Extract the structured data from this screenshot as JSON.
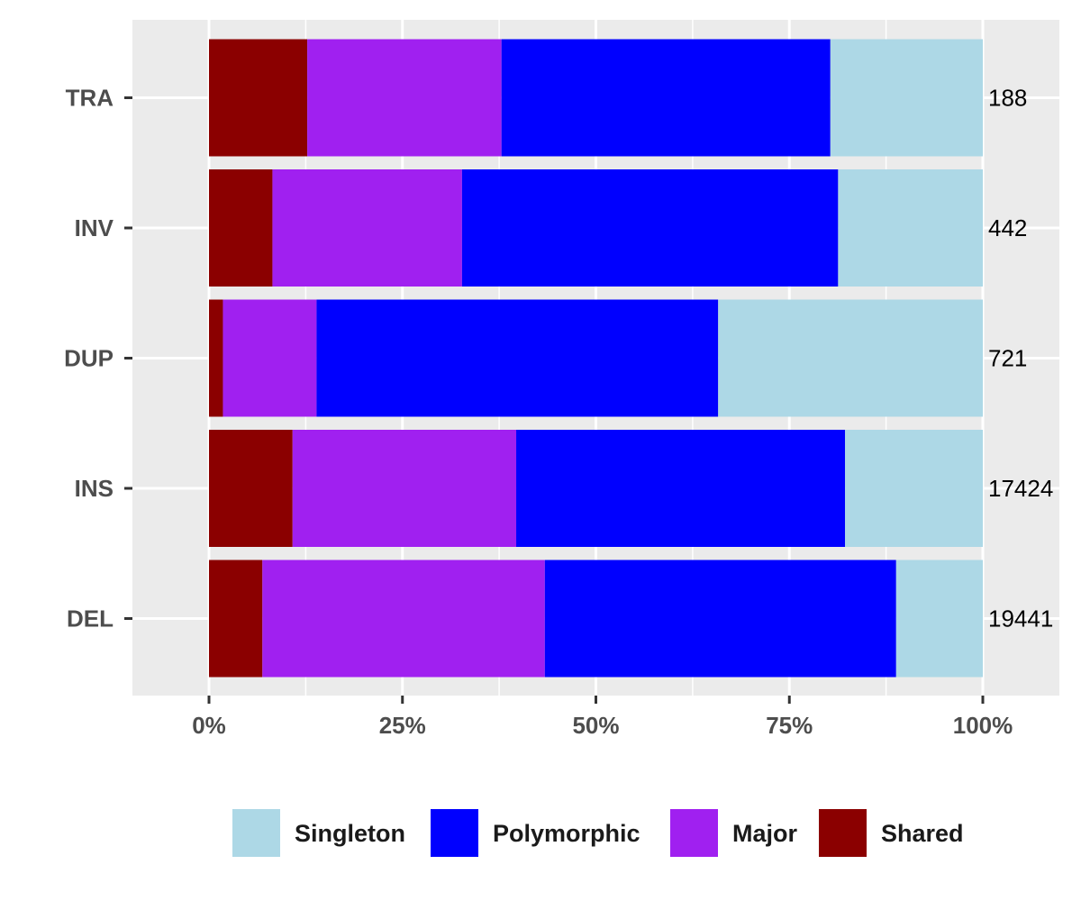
{
  "chart_data": {
    "type": "bar",
    "orientation": "horizontal",
    "stacked": true,
    "normalized": true,
    "title": "",
    "xlabel": "",
    "ylabel": "",
    "xlim": [
      -0.2,
      2.2
    ],
    "x_ticks": [
      0,
      0.25,
      0.5,
      0.75,
      1.0
    ],
    "x_tick_labels": [
      "0%",
      "25%",
      "50%",
      "75%",
      "100%"
    ],
    "categories": [
      "TRA",
      "INV",
      "DUP",
      "INS",
      "DEL"
    ],
    "counts": [
      "188",
      "442",
      "721",
      "17424",
      "19441"
    ],
    "series": [
      {
        "name": "Shared",
        "color": "#8B0000",
        "values": [
          0.127,
          0.082,
          0.018,
          0.108,
          0.069
        ]
      },
      {
        "name": "Major",
        "color": "#A020F0",
        "values": [
          0.251,
          0.245,
          0.121,
          0.289,
          0.365
        ]
      },
      {
        "name": "Polymorphic",
        "color": "#0000FF",
        "values": [
          0.425,
          0.486,
          0.519,
          0.425,
          0.454
        ]
      },
      {
        "name": "Singleton",
        "color": "#ADD8E6",
        "values": [
          0.197,
          0.187,
          0.342,
          0.178,
          0.112
        ]
      }
    ],
    "legend": {
      "position": "bottom",
      "order": [
        "Singleton",
        "Polymorphic",
        "Major",
        "Shared"
      ]
    },
    "grid": true,
    "panel_background": "#EBEBEB",
    "grid_color": "#FFFFFF"
  }
}
